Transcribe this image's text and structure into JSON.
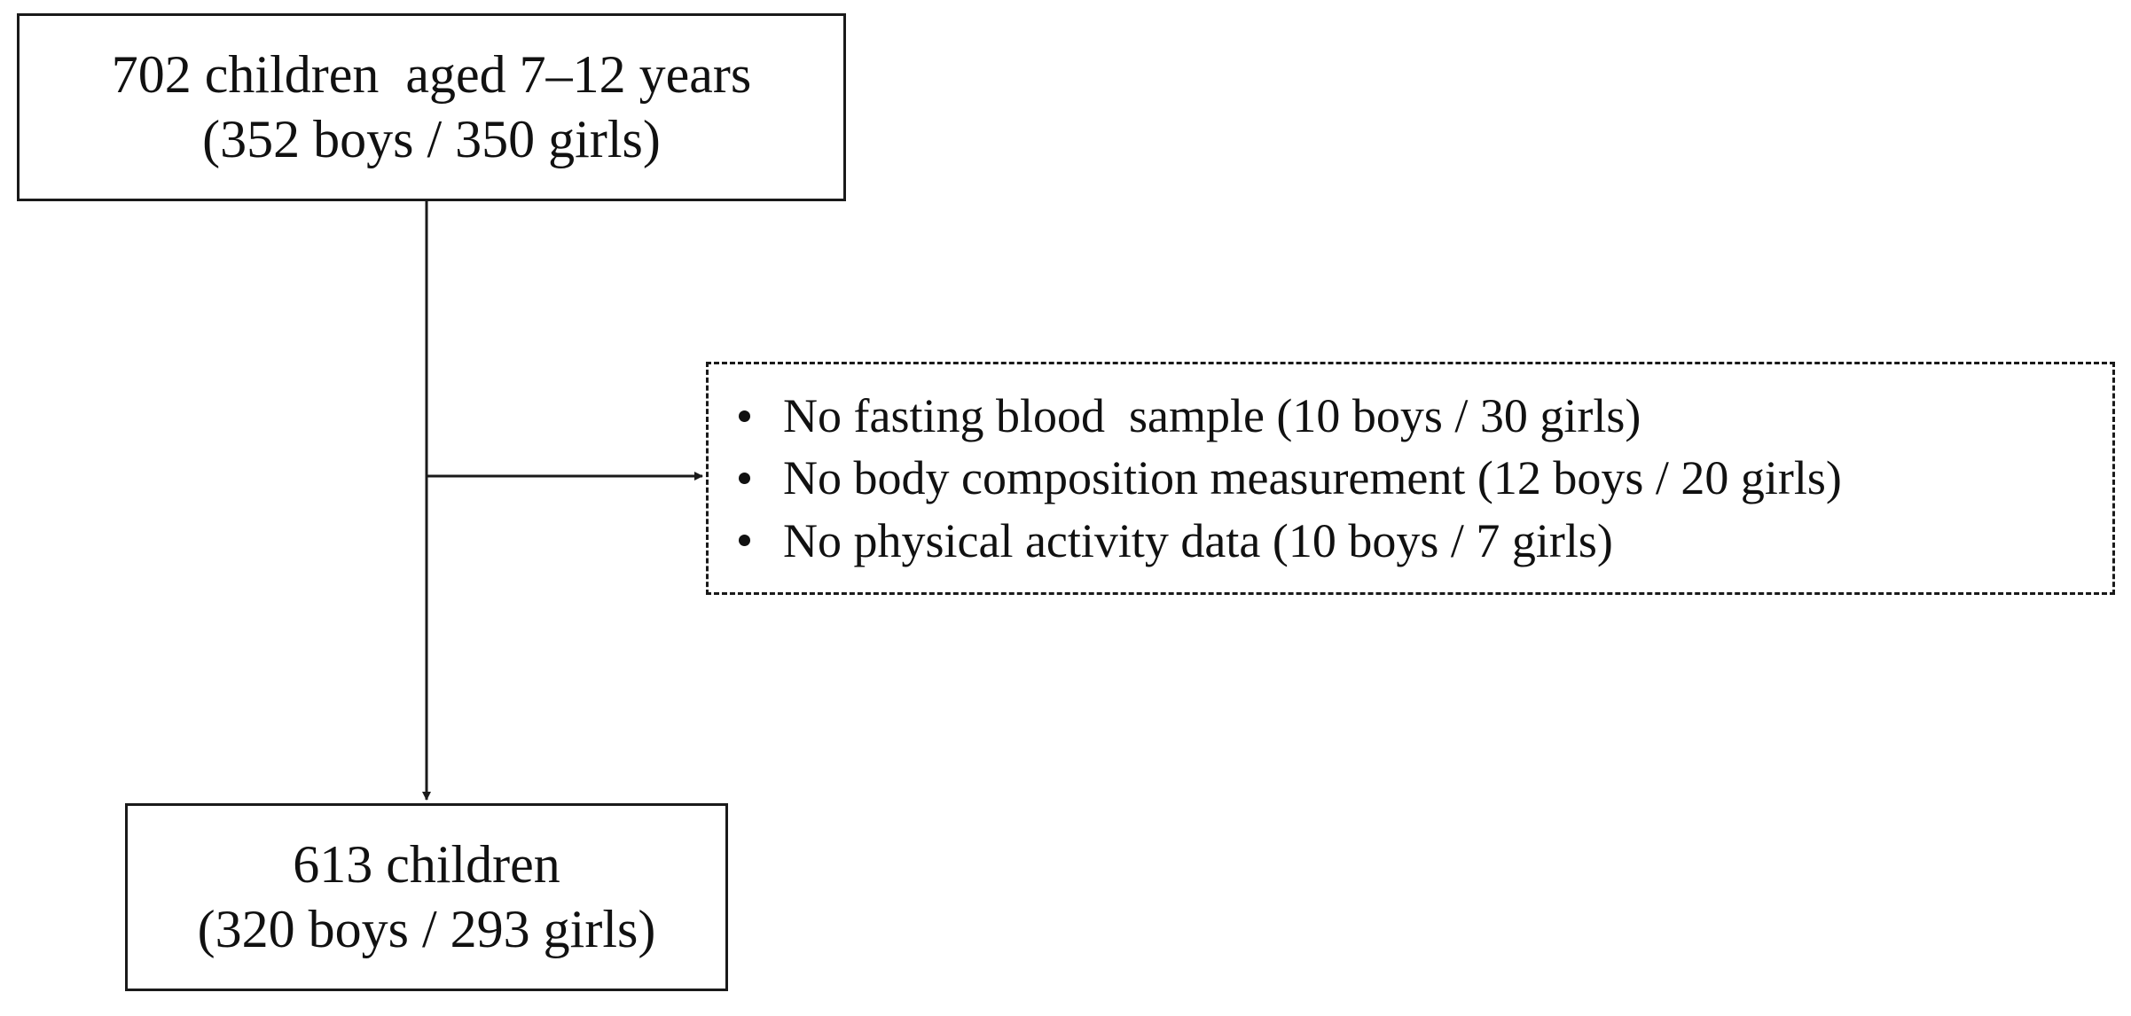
{
  "initial_cohort": {
    "line1": "702 children  aged 7–12 years",
    "line2": "(352 boys / 350 girls)"
  },
  "exclusions": {
    "items": [
      "No fasting blood  sample (10 boys / 30 girls)",
      "No body composition measurement (12 boys / 20 girls)",
      "No physical activity data (10 boys / 7 girls)"
    ]
  },
  "final_cohort": {
    "line1": "613 children",
    "line2": "(320 boys / 293 girls)"
  }
}
